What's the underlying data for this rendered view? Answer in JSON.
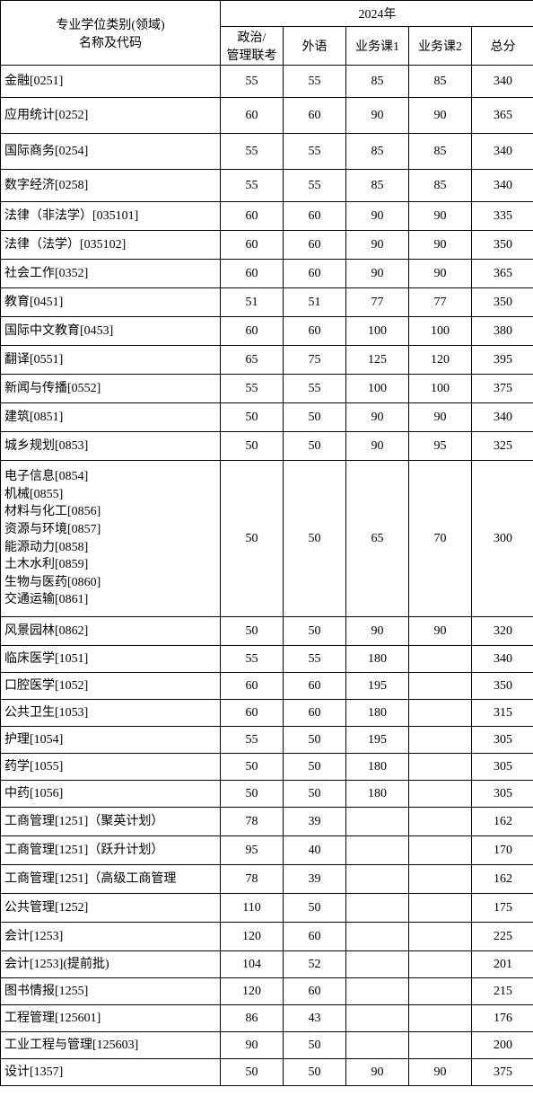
{
  "header": {
    "name_label": "专业学位类别(领域)\n名称及代码",
    "year_label": "2024年",
    "col1": "政治/\n管理联考",
    "col2": "外语",
    "col3": "业务课1",
    "col4": "业务课2",
    "col5": "总分"
  },
  "row_heights": {
    "name_header": 62,
    "year_header": 30,
    "sub_header": 42,
    "default": 36,
    "tall": 174
  },
  "rows": [
    {
      "name": "金融[0251]",
      "c1": "55",
      "c2": "55",
      "c3": "85",
      "c4": "85",
      "c5": "340",
      "h": 36
    },
    {
      "name": "应用统计[0252]",
      "c1": "60",
      "c2": "60",
      "c3": "90",
      "c4": "90",
      "c5": "365",
      "h": 40
    },
    {
      "name": "国际商务[0254]",
      "c1": "55",
      "c2": "55",
      "c3": "85",
      "c4": "85",
      "c5": "340",
      "h": 40
    },
    {
      "name": "数字经济[0258]",
      "c1": "55",
      "c2": "55",
      "c3": "85",
      "c4": "85",
      "c5": "340",
      "h": 36
    },
    {
      "name": "法律（非法学）[035101]",
      "c1": "60",
      "c2": "60",
      "c3": "90",
      "c4": "90",
      "c5": "335",
      "h": 32
    },
    {
      "name": "法律（法学）[035102]",
      "c1": "60",
      "c2": "60",
      "c3": "90",
      "c4": "90",
      "c5": "350",
      "h": 32
    },
    {
      "name": "社会工作[0352]",
      "c1": "60",
      "c2": "60",
      "c3": "90",
      "c4": "90",
      "c5": "365",
      "h": 32
    },
    {
      "name": "教育[0451]",
      "c1": "51",
      "c2": "51",
      "c3": "77",
      "c4": "77",
      "c5": "350",
      "h": 32
    },
    {
      "name": "国际中文教育[0453]",
      "c1": "60",
      "c2": "60",
      "c3": "100",
      "c4": "100",
      "c5": "380",
      "h": 32
    },
    {
      "name": "翻译[0551]",
      "c1": "65",
      "c2": "75",
      "c3": "125",
      "c4": "120",
      "c5": "395",
      "h": 32
    },
    {
      "name": "新闻与传播[0552]",
      "c1": "55",
      "c2": "55",
      "c3": "100",
      "c4": "100",
      "c5": "375",
      "h": 32
    },
    {
      "name": "建筑[0851]",
      "c1": "50",
      "c2": "50",
      "c3": "90",
      "c4": "90",
      "c5": "340",
      "h": 32
    },
    {
      "name": "城乡规划[0853]",
      "c1": "50",
      "c2": "50",
      "c3": "90",
      "c4": "95",
      "c5": "325",
      "h": 32
    },
    {
      "name": "电子信息[0854]\n机械[0855]\n材料与化工[0856]\n资源与环境[0857]\n能源动力[0858]\n土木水利[0859]\n生物与医药[0860]\n交通运输[0861]",
      "c1": "50",
      "c2": "50",
      "c3": "65",
      "c4": "70",
      "c5": "300",
      "h": 174,
      "multiline": true
    },
    {
      "name": "风景园林[0862]",
      "c1": "50",
      "c2": "50",
      "c3": "90",
      "c4": "90",
      "c5": "320",
      "h": 32
    },
    {
      "name": "临床医学[1051]",
      "c1": "55",
      "c2": "55",
      "c3": "180",
      "c4": "",
      "c5": "340",
      "h": 30
    },
    {
      "name": "口腔医学[1052]",
      "c1": "60",
      "c2": "60",
      "c3": "195",
      "c4": "",
      "c5": "350",
      "h": 30
    },
    {
      "name": "公共卫生[1053]",
      "c1": "60",
      "c2": "60",
      "c3": "180",
      "c4": "",
      "c5": "315",
      "h": 30
    },
    {
      "name": "护理[1054]",
      "c1": "55",
      "c2": "50",
      "c3": "195",
      "c4": "",
      "c5": "305",
      "h": 30
    },
    {
      "name": "药学[1055]",
      "c1": "50",
      "c2": "50",
      "c3": "180",
      "c4": "",
      "c5": "305",
      "h": 30
    },
    {
      "name": "中药[1056]",
      "c1": "50",
      "c2": "50",
      "c3": "180",
      "c4": "",
      "c5": "305",
      "h": 30
    },
    {
      "name": "工商管理[1251]（聚英计划）",
      "c1": "78",
      "c2": "39",
      "c3": "",
      "c4": "",
      "c5": "162",
      "h": 32
    },
    {
      "name": "工商管理[1251]（跃升计划）",
      "c1": "95",
      "c2": "40",
      "c3": "",
      "c4": "",
      "c5": "170",
      "h": 32
    },
    {
      "name": "工商管理[1251]（高级工商管理",
      "c1": "78",
      "c2": "39",
      "c3": "",
      "c4": "",
      "c5": "162",
      "h": 32
    },
    {
      "name": "公共管理[1252]",
      "c1": "110",
      "c2": "50",
      "c3": "",
      "c4": "",
      "c5": "175",
      "h": 32
    },
    {
      "name": "会计[1253]",
      "c1": "120",
      "c2": "60",
      "c3": "",
      "c4": "",
      "c5": "225",
      "h": 32
    },
    {
      "name": "会计[1253](提前批)",
      "c1": "104",
      "c2": "52",
      "c3": "",
      "c4": "",
      "c5": "201",
      "h": 30
    },
    {
      "name": "图书情报[1255]",
      "c1": "120",
      "c2": "60",
      "c3": "",
      "c4": "",
      "c5": "215",
      "h": 30
    },
    {
      "name": "工程管理[125601]",
      "c1": "86",
      "c2": "43",
      "c3": "",
      "c4": "",
      "c5": "176",
      "h": 30
    },
    {
      "name": "工业工程与管理[125603]",
      "c1": "90",
      "c2": "50",
      "c3": "",
      "c4": "",
      "c5": "200",
      "h": 30
    },
    {
      "name": "设计[1357]",
      "c1": "50",
      "c2": "50",
      "c3": "90",
      "c4": "90",
      "c5": "375",
      "h": 30
    }
  ]
}
